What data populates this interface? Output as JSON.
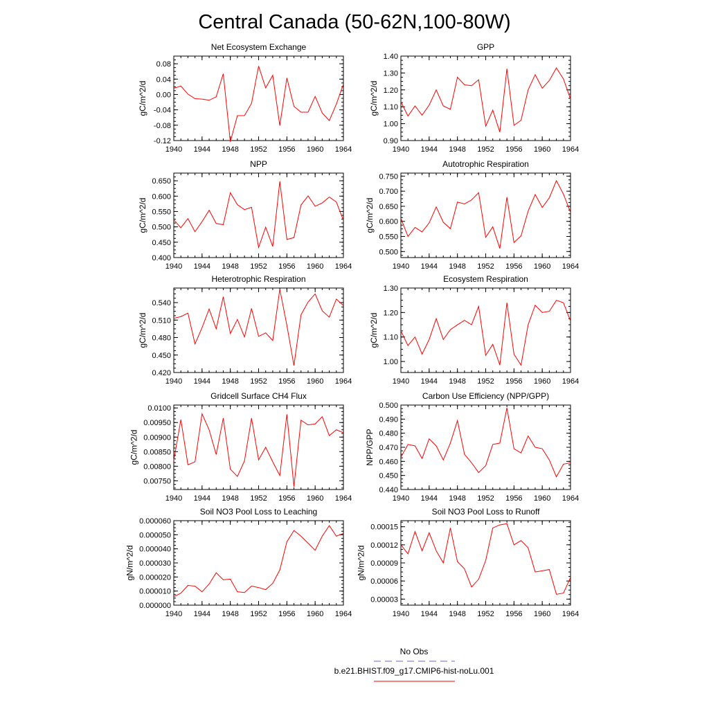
{
  "figure": {
    "title": "Central Canada (50-62N,100-80W)",
    "line_color": "#ff0000",
    "obs_color": "#6666cc"
  },
  "legend": {
    "obs_label": "No Obs",
    "model_label": "b.e21.BHIST.f09_g17.CMIP6-hist-noLu.001"
  },
  "chart_data": [
    {
      "type": "line",
      "title": "Net Ecosystem Exchange",
      "ylabel": "gC/m^2/d",
      "xlim": [
        1940,
        1964
      ],
      "xticks": [
        "1940",
        "1944",
        "1948",
        "1952",
        "1956",
        "1960",
        "1964"
      ],
      "ylim": [
        -0.12,
        0.1
      ],
      "yticks": [
        "-0.12",
        "-0.08",
        "-0.04",
        "0.00",
        "0.04",
        "0.08"
      ],
      "x": [
        1940,
        1941,
        1942,
        1943,
        1944,
        1945,
        1946,
        1947,
        1948,
        1949,
        1950,
        1951,
        1952,
        1953,
        1954,
        1955,
        1956,
        1957,
        1958,
        1959,
        1960,
        1961,
        1962,
        1963,
        1964
      ],
      "y": [
        0.016,
        0.022,
        0.001,
        -0.011,
        -0.012,
        -0.015,
        -0.006,
        0.054,
        -0.123,
        -0.055,
        -0.055,
        -0.023,
        0.074,
        0.017,
        0.05,
        -0.081,
        0.043,
        -0.031,
        -0.046,
        -0.046,
        -0.005,
        -0.048,
        -0.068,
        -0.025,
        0.027
      ]
    },
    {
      "type": "line",
      "title": "GPP",
      "ylabel": "gC/m^2/d",
      "xlim": [
        1940,
        1964
      ],
      "xticks": [
        "1940",
        "1944",
        "1948",
        "1952",
        "1956",
        "1960",
        "1964"
      ],
      "ylim": [
        0.9,
        1.4
      ],
      "yticks": [
        "0.90",
        "1.00",
        "1.10",
        "1.20",
        "1.30",
        "1.40"
      ],
      "x": [
        1940,
        1941,
        1942,
        1943,
        1944,
        1945,
        1946,
        1947,
        1948,
        1949,
        1950,
        1951,
        1952,
        1953,
        1954,
        1955,
        1956,
        1957,
        1958,
        1959,
        1960,
        1961,
        1962,
        1963,
        1964
      ],
      "y": [
        1.13,
        1.045,
        1.105,
        1.05,
        1.11,
        1.2,
        1.105,
        1.085,
        1.275,
        1.23,
        1.225,
        1.26,
        0.985,
        1.08,
        0.95,
        1.325,
        0.99,
        1.02,
        1.2,
        1.29,
        1.21,
        1.255,
        1.33,
        1.265,
        1.145
      ]
    },
    {
      "type": "line",
      "title": "NPP",
      "ylabel": "gC/m^2/d",
      "xlim": [
        1940,
        1964
      ],
      "xticks": [
        "1940",
        "1944",
        "1948",
        "1952",
        "1956",
        "1960",
        "1964"
      ],
      "ylim": [
        0.4,
        0.675
      ],
      "yticks": [
        "0.400",
        "0.450",
        "0.500",
        "0.550",
        "0.600",
        "0.650"
      ],
      "x": [
        1940,
        1941,
        1942,
        1943,
        1944,
        1945,
        1946,
        1947,
        1948,
        1949,
        1950,
        1951,
        1952,
        1953,
        1954,
        1955,
        1956,
        1957,
        1958,
        1959,
        1960,
        1961,
        1962,
        1963,
        1964
      ],
      "y": [
        0.523,
        0.497,
        0.527,
        0.484,
        0.517,
        0.554,
        0.511,
        0.507,
        0.611,
        0.572,
        0.556,
        0.564,
        0.433,
        0.499,
        0.436,
        0.648,
        0.459,
        0.465,
        0.571,
        0.601,
        0.567,
        0.578,
        0.597,
        0.581,
        0.521
      ]
    },
    {
      "type": "line",
      "title": "Autotrophic Respiration",
      "ylabel": "gC/m^2/d",
      "xlim": [
        1940,
        1964
      ],
      "xticks": [
        "1940",
        "1944",
        "1948",
        "1952",
        "1956",
        "1960",
        "1964"
      ],
      "ylim": [
        0.48,
        0.76
      ],
      "yticks": [
        "0.500",
        "0.550",
        "0.600",
        "0.650",
        "0.700",
        "0.750"
      ],
      "x": [
        1940,
        1941,
        1942,
        1943,
        1944,
        1945,
        1946,
        1947,
        1948,
        1949,
        1950,
        1951,
        1952,
        1953,
        1954,
        1955,
        1956,
        1957,
        1958,
        1959,
        1960,
        1961,
        1962,
        1963,
        1964
      ],
      "y": [
        0.61,
        0.55,
        0.58,
        0.565,
        0.595,
        0.648,
        0.597,
        0.576,
        0.664,
        0.658,
        0.671,
        0.695,
        0.547,
        0.582,
        0.51,
        0.68,
        0.53,
        0.552,
        0.634,
        0.689,
        0.646,
        0.678,
        0.735,
        0.69,
        0.63
      ]
    },
    {
      "type": "line",
      "title": "Heterotrophic Respiration",
      "ylabel": "gC/m^2/d",
      "xlim": [
        1940,
        1964
      ],
      "xticks": [
        "1940",
        "1944",
        "1948",
        "1952",
        "1956",
        "1960",
        "1964"
      ],
      "ylim": [
        0.42,
        0.565
      ],
      "yticks": [
        "0.420",
        "0.450",
        "0.480",
        "0.510",
        "0.540"
      ],
      "x": [
        1940,
        1941,
        1942,
        1943,
        1944,
        1945,
        1946,
        1947,
        1948,
        1949,
        1950,
        1951,
        1952,
        1953,
        1954,
        1955,
        1956,
        1957,
        1958,
        1959,
        1960,
        1961,
        1962,
        1963,
        1964
      ],
      "y": [
        0.513,
        0.516,
        0.522,
        0.469,
        0.497,
        0.529,
        0.495,
        0.55,
        0.487,
        0.511,
        0.481,
        0.53,
        0.482,
        0.488,
        0.475,
        0.563,
        0.501,
        0.432,
        0.519,
        0.541,
        0.555,
        0.526,
        0.515,
        0.546,
        0.535
      ]
    },
    {
      "type": "line",
      "title": "Ecosystem Respiration",
      "ylabel": "gC/m^2/d",
      "xlim": [
        1940,
        1964
      ],
      "xticks": [
        "1940",
        "1944",
        "1948",
        "1952",
        "1956",
        "1960",
        "1964"
      ],
      "ylim": [
        0.955,
        1.3
      ],
      "yticks": [
        "1.00",
        "1.10",
        "1.20",
        "1.30"
      ],
      "x": [
        1940,
        1941,
        1942,
        1943,
        1944,
        1945,
        1946,
        1947,
        1948,
        1949,
        1950,
        1951,
        1952,
        1953,
        1954,
        1955,
        1956,
        1957,
        1958,
        1959,
        1960,
        1961,
        1962,
        1963,
        1964
      ],
      "y": [
        1.125,
        1.065,
        1.1,
        1.03,
        1.09,
        1.175,
        1.09,
        1.13,
        1.15,
        1.168,
        1.15,
        1.225,
        1.025,
        1.07,
        0.985,
        1.24,
        1.03,
        0.985,
        1.15,
        1.23,
        1.2,
        1.205,
        1.25,
        1.24,
        1.165
      ]
    },
    {
      "type": "line",
      "title": "Gridcell Surface CH4 Flux",
      "ylabel": "gC/m^2/d",
      "xlim": [
        1940,
        1964
      ],
      "xticks": [
        "1940",
        "1944",
        "1948",
        "1952",
        "1956",
        "1960",
        "1964"
      ],
      "ylim": [
        0.0072,
        0.0101
      ],
      "yticks": [
        "0.00750",
        "0.00800",
        "0.00850",
        "0.00900",
        "0.00950",
        "0.0100"
      ],
      "x": [
        1940,
        1941,
        1942,
        1943,
        1944,
        1945,
        1946,
        1947,
        1948,
        1949,
        1950,
        1951,
        1952,
        1953,
        1954,
        1955,
        1956,
        1957,
        1958,
        1959,
        1960,
        1961,
        1962,
        1963,
        1964
      ],
      "y": [
        0.0082,
        0.0096,
        0.00805,
        0.00815,
        0.0098,
        0.00925,
        0.0084,
        0.00965,
        0.0079,
        0.00765,
        0.00818,
        0.00965,
        0.00822,
        0.00865,
        0.00815,
        0.00768,
        0.00978,
        0.0073,
        0.00958,
        0.00942,
        0.00945,
        0.0097,
        0.00905,
        0.00925,
        0.00915
      ]
    },
    {
      "type": "line",
      "title": "Carbon Use Efficiency (NPP/GPP)",
      "ylabel": "NPP/GPP",
      "xlim": [
        1940,
        1964
      ],
      "xticks": [
        "1940",
        "1944",
        "1948",
        "1952",
        "1956",
        "1960",
        "1964"
      ],
      "ylim": [
        0.44,
        0.5
      ],
      "yticks": [
        "0.440",
        "0.450",
        "0.460",
        "0.470",
        "0.480",
        "0.490",
        "0.500"
      ],
      "x": [
        1940,
        1941,
        1942,
        1943,
        1944,
        1945,
        1946,
        1947,
        1948,
        1949,
        1950,
        1951,
        1952,
        1953,
        1954,
        1955,
        1956,
        1957,
        1958,
        1959,
        1960,
        1961,
        1962,
        1963,
        1964
      ],
      "y": [
        0.463,
        0.472,
        0.471,
        0.462,
        0.476,
        0.471,
        0.461,
        0.473,
        0.489,
        0.465,
        0.459,
        0.452,
        0.457,
        0.472,
        0.473,
        0.498,
        0.469,
        0.466,
        0.478,
        0.47,
        0.469,
        0.461,
        0.449,
        0.458,
        0.459
      ]
    },
    {
      "type": "line",
      "title": "Soil NO3 Pool Loss to Leaching",
      "ylabel": "gN/m^2/d",
      "xlim": [
        1940,
        1964
      ],
      "xticks": [
        "1940",
        "1944",
        "1948",
        "1952",
        "1956",
        "1960",
        "1964"
      ],
      "ylim": [
        0.0,
        6e-05
      ],
      "yticks": [
        "0.000000",
        "0.000010",
        "0.000020",
        "0.000030",
        "0.000040",
        "0.000050",
        "0.000060"
      ],
      "x": [
        1940,
        1941,
        1942,
        1943,
        1944,
        1945,
        1946,
        1947,
        1948,
        1949,
        1950,
        1951,
        1952,
        1953,
        1954,
        1955,
        1956,
        1957,
        1958,
        1959,
        1960,
        1961,
        1962,
        1963,
        1964
      ],
      "y": [
        6e-06,
        8.5e-06,
        1.4e-05,
        1.35e-05,
        9.5e-06,
        1.5e-05,
        2.3e-05,
        1.8e-05,
        1.85e-05,
        9.5e-06,
        9e-06,
        1.35e-05,
        1.25e-05,
        1.1e-05,
        1.55e-05,
        2.5e-05,
        4.5e-05,
        5.3e-05,
        4.9e-05,
        4.4e-05,
        3.9e-05,
        4.9e-05,
        5.65e-05,
        4.9e-05,
        5.1e-05
      ]
    },
    {
      "type": "line",
      "title": "Soil NO3 Pool Loss to Runoff",
      "ylabel": "gN/m^2/d",
      "xlim": [
        1940,
        1964
      ],
      "xticks": [
        "1940",
        "1944",
        "1948",
        "1952",
        "1956",
        "1960",
        "1964"
      ],
      "ylim": [
        2e-05,
        0.00016
      ],
      "yticks": [
        "0.00003",
        "0.00006",
        "0.00009",
        "0.00012",
        "0.00015"
      ],
      "x": [
        1940,
        1941,
        1942,
        1943,
        1944,
        1945,
        1946,
        1947,
        1948,
        1949,
        1950,
        1951,
        1952,
        1953,
        1954,
        1955,
        1956,
        1957,
        1958,
        1959,
        1960,
        1961,
        1962,
        1963,
        1964
      ],
      "y": [
        0.00012,
        0.000105,
        0.000142,
        0.00011,
        0.00014,
        0.00011,
        9e-05,
        0.000148,
        9.2e-05,
        8e-05,
        5e-05,
        6.3e-05,
        9.4e-05,
        0.000148,
        0.000153,
        0.000155,
        0.00012,
        0.000127,
        0.000115,
        7.5e-05,
        7.7e-05,
        7.9e-05,
        3.8e-05,
        4e-05,
        6.6e-05
      ]
    }
  ]
}
